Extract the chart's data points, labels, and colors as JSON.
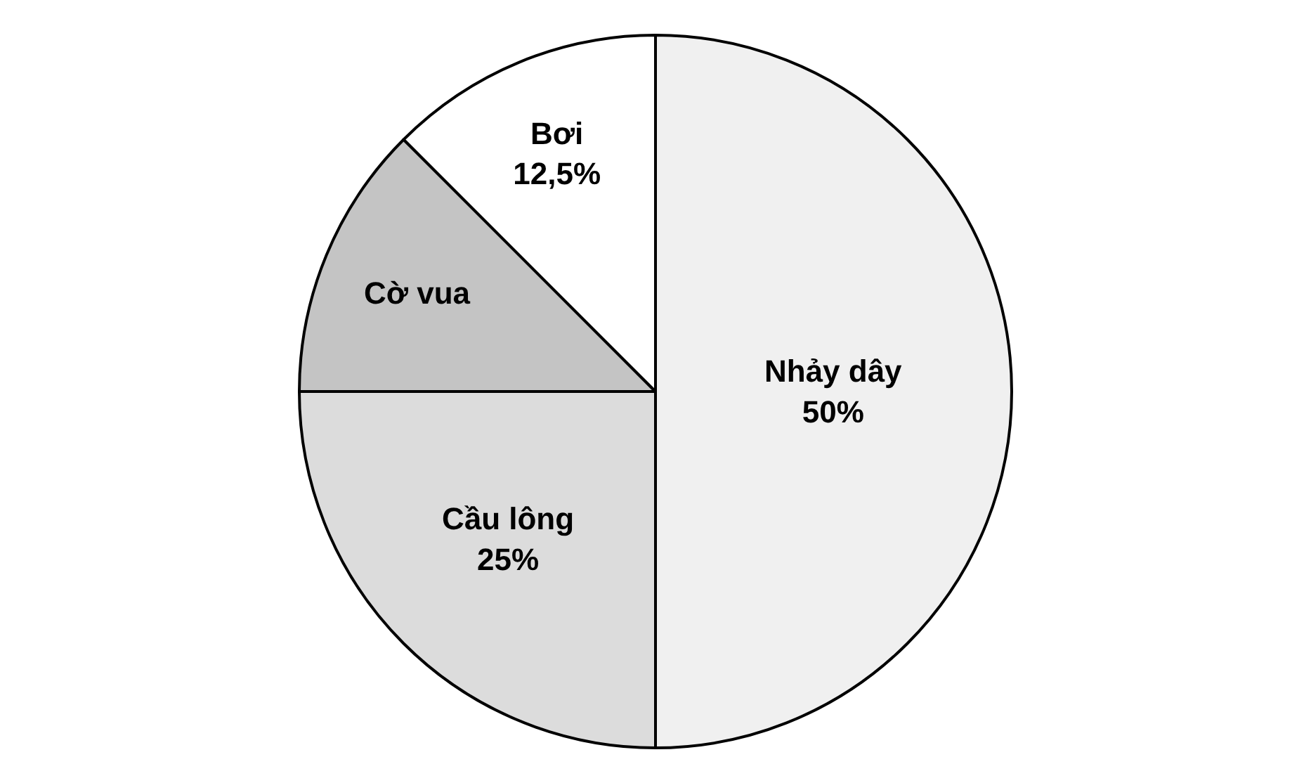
{
  "chart_data": {
    "type": "pie",
    "categories": [
      "Nhảy dây",
      "Cầu lông",
      "Cờ vua",
      "Bơi"
    ],
    "values": [
      50,
      25,
      12.5,
      12.5
    ],
    "value_labels": [
      "50%",
      "25%",
      null,
      "12,5%"
    ],
    "colors": [
      "#f0f0f0",
      "#dcdcdc",
      "#c4c4c4",
      "#ffffff"
    ],
    "legend": false
  }
}
